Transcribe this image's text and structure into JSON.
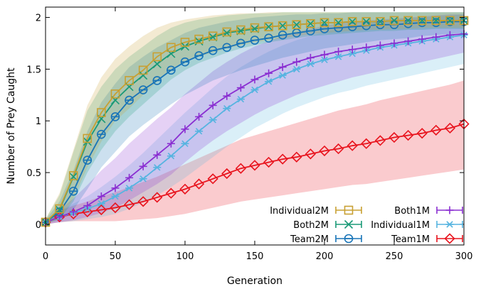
{
  "chart_data": {
    "type": "line",
    "xlabel": "Generation",
    "ylabel": "Number of Prey Caught",
    "xlim": [
      0,
      300
    ],
    "ylim": [
      -0.2,
      2.1
    ],
    "x_ticks": [
      0,
      50,
      100,
      150,
      200,
      250,
      300
    ],
    "y_ticks": [
      0,
      0.5,
      1,
      1.5,
      2
    ],
    "y_tick_labels": [
      "0",
      "0.5",
      "1",
      "1.5",
      "2"
    ],
    "grid": false,
    "legend_position": "bottom-right",
    "x": [
      0,
      10,
      20,
      30,
      40,
      50,
      60,
      70,
      80,
      90,
      100,
      110,
      120,
      130,
      140,
      150,
      160,
      170,
      180,
      190,
      200,
      210,
      220,
      230,
      240,
      250,
      260,
      270,
      280,
      290,
      300
    ],
    "series": [
      {
        "name": "Individual2M",
        "color": "#c8a032",
        "marker": "square",
        "values": [
          0.02,
          0.15,
          0.47,
          0.83,
          1.08,
          1.26,
          1.39,
          1.49,
          1.62,
          1.71,
          1.76,
          1.79,
          1.82,
          1.86,
          1.88,
          1.9,
          1.91,
          1.92,
          1.93,
          1.94,
          1.95,
          1.95,
          1.96,
          1.96,
          1.96,
          1.97,
          1.97,
          1.97,
          1.97,
          1.97,
          1.97
        ],
        "lower": [
          0.01,
          0.05,
          0.25,
          0.55,
          0.8,
          1.0,
          1.12,
          1.25,
          1.38,
          1.5,
          1.57,
          1.62,
          1.66,
          1.7,
          1.73,
          1.76,
          1.78,
          1.8,
          1.82,
          1.84,
          1.85,
          1.86,
          1.87,
          1.88,
          1.88,
          1.89,
          1.89,
          1.9,
          1.9,
          1.9,
          1.9
        ],
        "upper": [
          0.05,
          0.3,
          0.72,
          1.15,
          1.42,
          1.6,
          1.72,
          1.82,
          1.9,
          1.95,
          1.98,
          2.0,
          2.02,
          2.03,
          2.04,
          2.04,
          2.05,
          2.05,
          2.05,
          2.05,
          2.05,
          2.05,
          2.05,
          2.05,
          2.05,
          2.05,
          2.05,
          2.05,
          2.05,
          2.05,
          2.05
        ]
      },
      {
        "name": "Both2M",
        "color": "#1a9a77",
        "marker": "cross",
        "values": [
          0.02,
          0.14,
          0.46,
          0.8,
          1.02,
          1.2,
          1.33,
          1.44,
          1.55,
          1.65,
          1.72,
          1.77,
          1.81,
          1.85,
          1.87,
          1.89,
          1.91,
          1.92,
          1.93,
          1.94,
          1.95,
          1.95,
          1.96,
          1.96,
          1.96,
          1.97,
          1.97,
          1.97,
          1.97,
          1.97,
          1.97
        ],
        "lower": [
          0.01,
          0.05,
          0.22,
          0.5,
          0.72,
          0.9,
          1.04,
          1.16,
          1.28,
          1.4,
          1.49,
          1.56,
          1.61,
          1.66,
          1.7,
          1.73,
          1.76,
          1.78,
          1.8,
          1.82,
          1.83,
          1.84,
          1.85,
          1.86,
          1.87,
          1.87,
          1.88,
          1.88,
          1.89,
          1.89,
          1.89
        ],
        "upper": [
          0.05,
          0.28,
          0.7,
          1.1,
          1.33,
          1.5,
          1.62,
          1.72,
          1.82,
          1.9,
          1.95,
          1.98,
          2.0,
          2.02,
          2.03,
          2.04,
          2.04,
          2.05,
          2.05,
          2.05,
          2.05,
          2.05,
          2.05,
          2.05,
          2.05,
          2.05,
          2.05,
          2.05,
          2.05,
          2.05,
          2.05
        ]
      },
      {
        "name": "Team2M",
        "color": "#1874b8",
        "marker": "circle",
        "values": [
          0.02,
          0.12,
          0.32,
          0.62,
          0.87,
          1.04,
          1.2,
          1.3,
          1.39,
          1.49,
          1.57,
          1.63,
          1.68,
          1.71,
          1.75,
          1.78,
          1.8,
          1.83,
          1.85,
          1.87,
          1.89,
          1.9,
          1.91,
          1.92,
          1.93,
          1.93,
          1.94,
          1.95,
          1.95,
          1.96,
          1.96
        ],
        "lower": [
          0.01,
          0.04,
          0.14,
          0.34,
          0.55,
          0.7,
          0.85,
          0.96,
          1.06,
          1.16,
          1.25,
          1.32,
          1.39,
          1.44,
          1.49,
          1.53,
          1.57,
          1.61,
          1.64,
          1.67,
          1.7,
          1.72,
          1.74,
          1.76,
          1.78,
          1.79,
          1.8,
          1.82,
          1.83,
          1.84,
          1.85
        ],
        "upper": [
          0.04,
          0.22,
          0.52,
          0.9,
          1.18,
          1.36,
          1.52,
          1.62,
          1.71,
          1.78,
          1.85,
          1.9,
          1.93,
          1.96,
          1.98,
          2.0,
          2.01,
          2.02,
          2.03,
          2.03,
          2.04,
          2.04,
          2.05,
          2.05,
          2.05,
          2.05,
          2.05,
          2.05,
          2.05,
          2.05,
          2.05
        ]
      },
      {
        "name": "Both1M",
        "color": "#8a2ed1",
        "marker": "plus",
        "values": [
          0.02,
          0.07,
          0.12,
          0.18,
          0.27,
          0.35,
          0.45,
          0.56,
          0.67,
          0.78,
          0.92,
          1.04,
          1.15,
          1.24,
          1.32,
          1.4,
          1.46,
          1.52,
          1.57,
          1.61,
          1.64,
          1.67,
          1.69,
          1.71,
          1.73,
          1.75,
          1.77,
          1.79,
          1.81,
          1.83,
          1.84
        ],
        "lower": [
          0.0,
          0.02,
          0.04,
          0.07,
          0.11,
          0.16,
          0.23,
          0.31,
          0.39,
          0.48,
          0.6,
          0.71,
          0.81,
          0.9,
          0.98,
          1.06,
          1.13,
          1.19,
          1.25,
          1.3,
          1.34,
          1.38,
          1.42,
          1.45,
          1.48,
          1.51,
          1.54,
          1.57,
          1.6,
          1.63,
          1.66
        ],
        "upper": [
          0.04,
          0.14,
          0.25,
          0.38,
          0.52,
          0.64,
          0.78,
          0.9,
          1.02,
          1.13,
          1.26,
          1.37,
          1.48,
          1.57,
          1.65,
          1.72,
          1.77,
          1.82,
          1.86,
          1.89,
          1.92,
          1.94,
          1.96,
          1.97,
          1.98,
          1.99,
          2.0,
          2.01,
          2.02,
          2.03,
          2.03
        ]
      },
      {
        "name": "Individual1M",
        "color": "#56b4e0",
        "marker": "asterisk",
        "values": [
          0.02,
          0.07,
          0.11,
          0.15,
          0.2,
          0.27,
          0.35,
          0.44,
          0.55,
          0.66,
          0.78,
          0.9,
          1.01,
          1.12,
          1.21,
          1.3,
          1.38,
          1.44,
          1.5,
          1.55,
          1.59,
          1.62,
          1.65,
          1.68,
          1.71,
          1.73,
          1.75,
          1.77,
          1.79,
          1.81,
          1.83
        ],
        "lower": [
          0.0,
          0.02,
          0.03,
          0.05,
          0.07,
          0.1,
          0.15,
          0.21,
          0.28,
          0.36,
          0.45,
          0.55,
          0.65,
          0.75,
          0.84,
          0.93,
          1.0,
          1.07,
          1.13,
          1.18,
          1.23,
          1.27,
          1.3,
          1.34,
          1.37,
          1.4,
          1.43,
          1.46,
          1.49,
          1.52,
          1.55
        ],
        "upper": [
          0.04,
          0.13,
          0.2,
          0.27,
          0.36,
          0.46,
          0.57,
          0.69,
          0.82,
          0.95,
          1.08,
          1.2,
          1.32,
          1.43,
          1.52,
          1.6,
          1.67,
          1.73,
          1.78,
          1.82,
          1.86,
          1.89,
          1.92,
          1.94,
          1.96,
          1.98,
          1.99,
          2.0,
          2.01,
          2.02,
          2.03
        ]
      },
      {
        "name": "Team1M",
        "color": "#e8141e",
        "marker": "diamond",
        "values": [
          0.02,
          0.07,
          0.1,
          0.12,
          0.14,
          0.16,
          0.19,
          0.22,
          0.26,
          0.3,
          0.34,
          0.39,
          0.44,
          0.49,
          0.54,
          0.57,
          0.6,
          0.63,
          0.65,
          0.68,
          0.71,
          0.73,
          0.76,
          0.78,
          0.81,
          0.84,
          0.86,
          0.88,
          0.91,
          0.93,
          0.97
        ],
        "lower": [
          0.0,
          0.02,
          0.03,
          0.03,
          0.03,
          0.03,
          0.04,
          0.05,
          0.06,
          0.08,
          0.1,
          0.13,
          0.16,
          0.19,
          0.22,
          0.24,
          0.26,
          0.28,
          0.3,
          0.32,
          0.34,
          0.36,
          0.38,
          0.39,
          0.41,
          0.43,
          0.45,
          0.47,
          0.49,
          0.51,
          0.53
        ],
        "upper": [
          0.04,
          0.13,
          0.18,
          0.22,
          0.27,
          0.31,
          0.36,
          0.41,
          0.46,
          0.52,
          0.58,
          0.64,
          0.7,
          0.76,
          0.82,
          0.86,
          0.9,
          0.94,
          0.98,
          1.02,
          1.06,
          1.1,
          1.13,
          1.16,
          1.2,
          1.23,
          1.26,
          1.29,
          1.32,
          1.35,
          1.39
        ]
      }
    ]
  }
}
